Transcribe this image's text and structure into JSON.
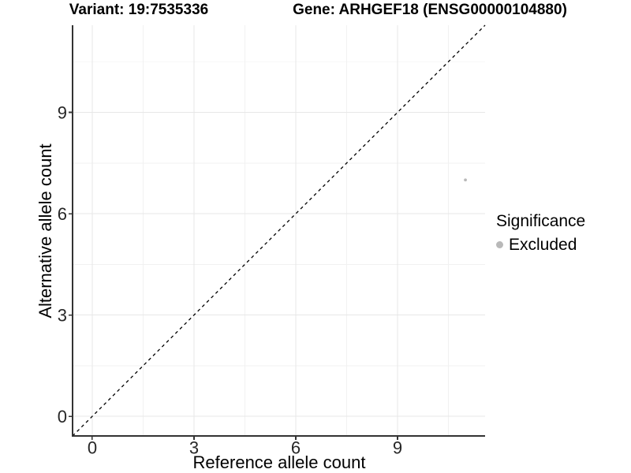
{
  "chart_data": {
    "type": "scatter",
    "titles": {
      "variant": "Variant: 19:7535336",
      "gene": "Gene: ARHGEF18 (ENSG00000104880)"
    },
    "xlabel": "Reference allele count",
    "ylabel": "Alternative allele count",
    "xlim": [
      -0.58,
      11.58
    ],
    "ylim": [
      -0.58,
      11.58
    ],
    "x_major_ticks": [
      0,
      3,
      6,
      9
    ],
    "y_major_ticks": [
      0,
      3,
      6,
      9
    ],
    "x_minor_gridlines": [
      1.5,
      4.5,
      7.5,
      10.5
    ],
    "y_minor_gridlines": [
      1.5,
      4.5,
      7.5,
      10.5
    ],
    "grid": true,
    "identity_line": {
      "equation": "y = x",
      "style": "dashed",
      "color": "#000000"
    },
    "series": [
      {
        "name": "Excluded",
        "color": "#b9b9b9",
        "points": [
          {
            "x": 11,
            "y": 7
          }
        ]
      }
    ],
    "legend": {
      "title": "Significance",
      "position": "right",
      "entries": [
        {
          "label": "Excluded",
          "color": "#b9b9b9"
        }
      ]
    },
    "colors": {
      "axis_line": "#333333",
      "tick_mark": "#333333",
      "tick_text": "#262626",
      "grid_major": "#e7e7e7",
      "grid_minor": "#f1f1f1",
      "point": "#b9b9b9",
      "background": "#ffffff"
    }
  }
}
